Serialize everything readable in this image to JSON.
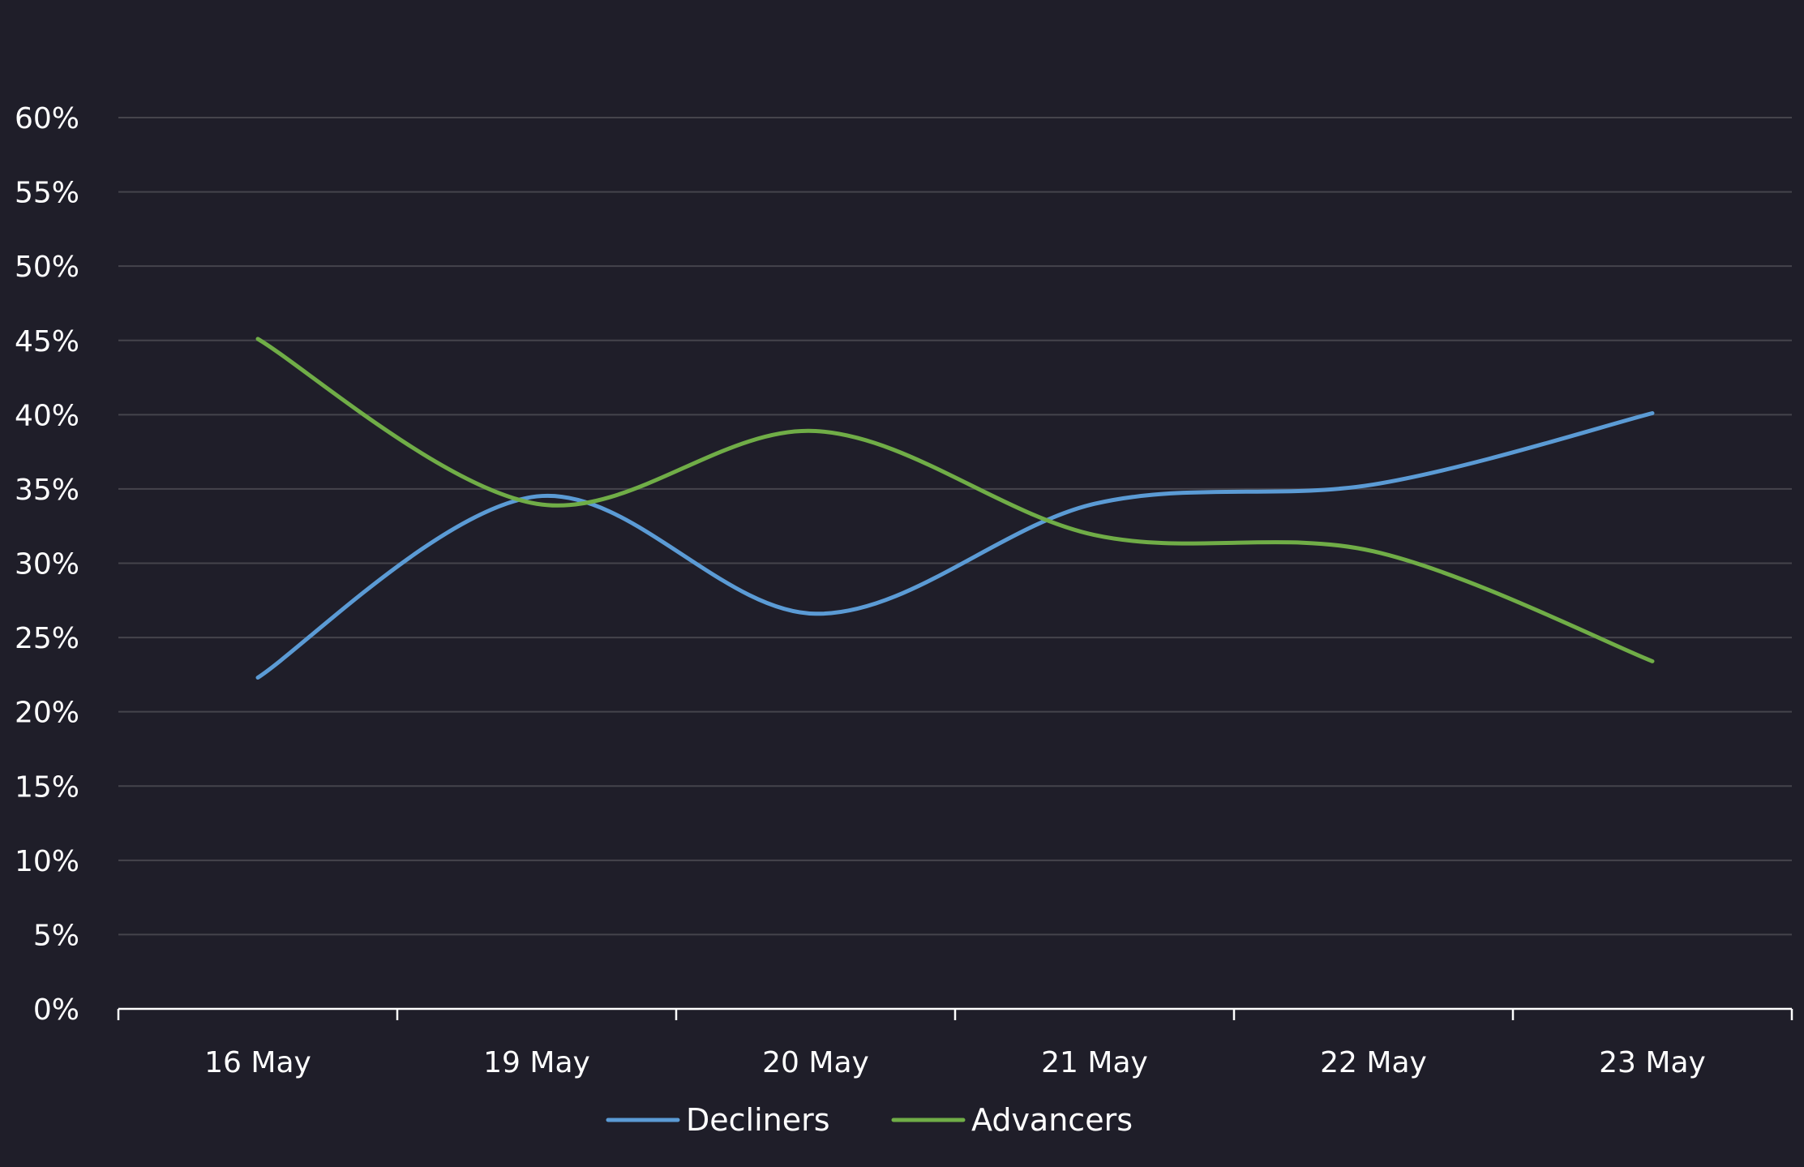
{
  "chart_data": {
    "type": "line",
    "categories": [
      "16 May",
      "19 May",
      "20 May",
      "21 May",
      "22 May",
      "23 May"
    ],
    "series": [
      {
        "name": "Decliners",
        "values": [
          22.3,
          34.5,
          26.6,
          34.0,
          35.3,
          40.1
        ],
        "color": "#5b9bd5"
      },
      {
        "name": "Advancers",
        "values": [
          45.1,
          34.0,
          38.9,
          31.9,
          30.8,
          23.4
        ],
        "color": "#70ad47"
      }
    ],
    "title": "",
    "xlabel": "",
    "ylabel": "",
    "ylim": [
      0,
      60
    ],
    "yticks": [
      "0%",
      "5%",
      "10%",
      "15%",
      "20%",
      "25%",
      "30%",
      "35%",
      "40%",
      "45%",
      "50%",
      "55%",
      "60%"
    ],
    "grid": true,
    "legend_position": "bottom",
    "colors": {
      "background": "#1f1e29",
      "grid": "#45444c",
      "axis": "#ffffff",
      "text": "#ffffff"
    }
  }
}
